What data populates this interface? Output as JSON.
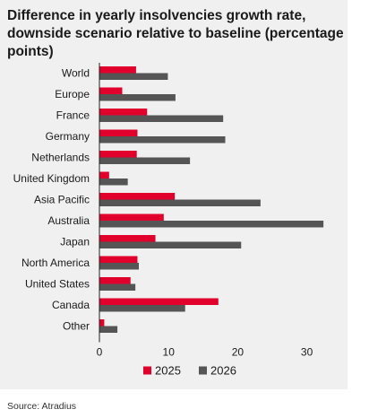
{
  "title": "Difference in yearly insolvencies growth rate, downside scenario relative to baseline (percentage points)",
  "source": "Source: Atradius",
  "colors": {
    "2025": "#e0002b",
    "2026": "#555555",
    "panel": "#f0f0f0"
  },
  "chart_data": {
    "type": "bar",
    "orientation": "horizontal",
    "title": "Difference in yearly insolvencies growth rate, downside scenario relative to baseline (percentage points)",
    "xlabel": "",
    "ylabel": "",
    "xlim": [
      0,
      35
    ],
    "xticks": [
      0,
      10,
      20,
      30
    ],
    "grid": false,
    "legend": "bottom",
    "categories": [
      "World",
      "Europe",
      "France",
      "Germany",
      "Netherlands",
      "United Kingdom",
      "Asia Pacific",
      "Australia",
      "Japan",
      "North America",
      "United States",
      "Canada",
      "Other"
    ],
    "series": [
      {
        "name": "2025",
        "values": [
          5.3,
          3.3,
          6.9,
          5.5,
          5.4,
          1.4,
          10.9,
          9.3,
          8.1,
          5.5,
          4.5,
          17.2,
          0.7
        ]
      },
      {
        "name": "2026",
        "values": [
          9.9,
          11.0,
          17.9,
          18.2,
          13.1,
          4.1,
          23.3,
          32.4,
          20.5,
          5.7,
          5.2,
          12.4,
          2.6
        ]
      }
    ]
  }
}
